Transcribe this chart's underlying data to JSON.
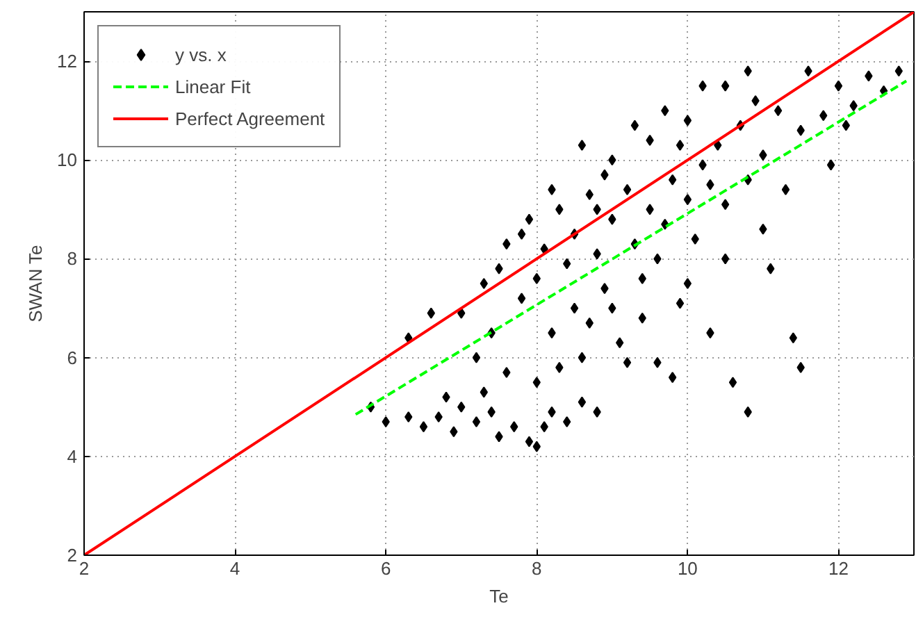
{
  "chart_data": {
    "type": "scatter",
    "xlabel": "Te",
    "ylabel": "SWAN Te",
    "xlim": [
      2,
      13
    ],
    "ylim": [
      2,
      13
    ],
    "xticks": [
      2,
      4,
      6,
      8,
      10,
      12
    ],
    "yticks": [
      2,
      4,
      6,
      8,
      10,
      12
    ],
    "grid": true,
    "legend": "top left",
    "series": [
      {
        "name": "y vs. x",
        "marker": "diamond",
        "color": "#000000",
        "x": [
          5.8,
          6.0,
          6.3,
          6.5,
          6.7,
          6.9,
          7.0,
          7.2,
          7.4,
          7.5,
          7.7,
          7.9,
          8.0,
          8.1,
          8.2,
          8.4,
          8.6,
          8.8,
          6.8,
          7.3,
          7.0,
          7.3,
          7.5,
          7.6,
          7.8,
          7.9,
          8.0,
          8.1,
          8.2,
          8.3,
          8.4,
          8.5,
          8.6,
          8.7,
          8.8,
          8.9,
          9.0,
          9.0,
          9.1,
          9.2,
          9.3,
          9.4,
          9.5,
          9.5,
          9.6,
          9.7,
          9.8,
          9.9,
          10.0,
          10.0,
          10.1,
          10.2,
          10.3,
          10.4,
          10.5,
          10.5,
          10.6,
          10.7,
          10.8,
          10.8,
          10.9,
          11.0,
          11.1,
          11.2,
          11.3,
          11.4,
          11.5,
          11.5,
          11.6,
          11.8,
          12.0,
          12.2,
          12.4,
          12.6,
          12.8,
          12.1,
          11.9,
          7.2,
          7.6,
          8.0,
          8.3,
          8.7,
          9.2,
          9.8,
          9.4,
          7.8,
          8.2,
          8.6,
          8.9,
          9.3,
          9.7,
          10.2,
          10.8,
          6.3,
          6.6,
          7.4,
          8.5,
          9.0,
          10.0,
          10.5,
          11.0,
          9.6,
          10.3,
          8.8,
          9.9
        ],
        "values": [
          5.0,
          4.7,
          4.8,
          4.6,
          4.8,
          4.5,
          5.0,
          4.7,
          4.9,
          4.4,
          4.6,
          4.3,
          4.2,
          4.6,
          4.9,
          4.7,
          5.1,
          4.9,
          5.2,
          5.3,
          6.9,
          7.5,
          7.8,
          8.3,
          7.2,
          8.8,
          7.6,
          8.2,
          6.5,
          9.0,
          7.9,
          8.5,
          6.0,
          9.3,
          8.1,
          7.4,
          8.8,
          10.0,
          6.3,
          9.4,
          8.3,
          7.6,
          9.0,
          10.4,
          5.9,
          8.7,
          9.6,
          7.1,
          9.2,
          10.8,
          8.4,
          9.9,
          6.5,
          10.3,
          9.1,
          11.5,
          5.5,
          10.7,
          4.9,
          9.6,
          11.2,
          10.1,
          7.8,
          11.0,
          9.4,
          6.4,
          5.8,
          10.6,
          11.8,
          10.9,
          11.5,
          11.1,
          11.7,
          11.4,
          11.8,
          10.7,
          9.9,
          6.0,
          5.7,
          5.5,
          5.8,
          6.7,
          5.9,
          5.6,
          6.8,
          8.5,
          9.4,
          10.3,
          9.7,
          10.7,
          11.0,
          11.5,
          11.8,
          6.4,
          6.9,
          6.5,
          7.0,
          7.0,
          7.5,
          8.0,
          8.6,
          8.0,
          9.5,
          9.0,
          10.3
        ]
      },
      {
        "name": "Linear Fit",
        "type": "line",
        "color": "#00ff00",
        "line_style": "dashed",
        "marker": "none",
        "x": [
          5.6,
          12.9
        ],
        "values": [
          4.85,
          11.6
        ]
      },
      {
        "name": "Perfect Agreement",
        "type": "line",
        "color": "#ff0000",
        "line_style": "solid",
        "marker": "none",
        "x": [
          2,
          13
        ],
        "values": [
          2,
          13
        ]
      }
    ]
  }
}
